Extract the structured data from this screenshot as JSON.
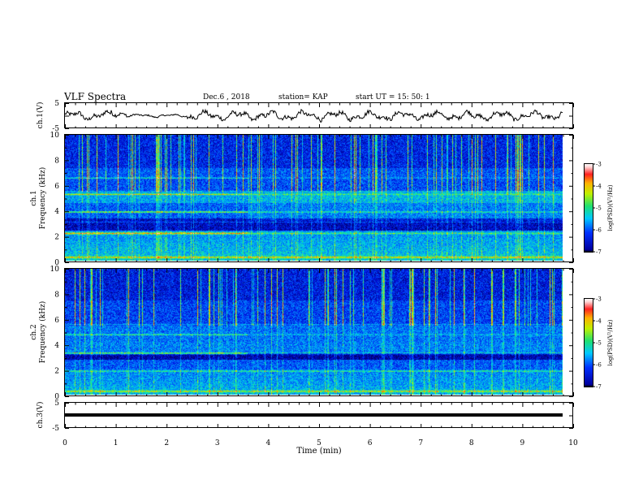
{
  "header": {
    "title": "VLF Spectra",
    "date": "Dec.6 , 2018",
    "station": "station= KAP",
    "start": "start UT = 15: 50: 1"
  },
  "chart_data": [
    {
      "type": "line",
      "panel": "ch1-waveform",
      "ylabel": "ch.1(V)",
      "ylim": [
        -5,
        5
      ],
      "yticks": [
        -5,
        0,
        5
      ],
      "ytick_labels": [
        "-5",
        "",
        "5"
      ],
      "xlim": [
        0,
        10
      ],
      "x_extent_min": [
        0,
        9.8
      ],
      "shape": "noise-like oscillation between about -2 V and +2 V"
    },
    {
      "type": "heatmap",
      "panel": "ch1-spectrogram",
      "ylabel": "ch.1 Frequency (kHz)",
      "ylim": [
        0,
        10
      ],
      "yticks": [
        0,
        2,
        4,
        6,
        8,
        10
      ],
      "xlim": [
        0,
        10
      ],
      "x_extent_min": [
        0,
        9.8
      ],
      "break_min": 3.6,
      "colorbar": {
        "label": "log(PSD)(V²/Hz)",
        "range": [
          -7,
          -3
        ],
        "ticks": [
          -7,
          -6,
          -5,
          -4,
          -3
        ]
      }
    },
    {
      "type": "heatmap",
      "panel": "ch2-spectrogram",
      "ylabel": "ch.2 Frequency (kHz)",
      "ylim": [
        0,
        10
      ],
      "yticks": [
        0,
        2,
        4,
        6,
        8,
        10
      ],
      "xlim": [
        0,
        10
      ],
      "x_extent_min": [
        0,
        9.8
      ],
      "break_min": 3.6,
      "colorbar": {
        "label": "log(PSD)(V²/Hz)",
        "range": [
          -7,
          -3
        ],
        "ticks": [
          -7,
          -6,
          -5,
          -4,
          -3
        ]
      }
    },
    {
      "type": "line",
      "panel": "ch3-waveform",
      "ylabel": "ch.3(V)",
      "ylim": [
        -5,
        5
      ],
      "yticks": [
        -5,
        0,
        5
      ],
      "ytick_labels": [
        "-5",
        "",
        "5"
      ],
      "xlim": [
        0,
        10
      ],
      "x_extent_min": [
        0,
        9.8
      ],
      "constant_value": 0
    }
  ],
  "xaxis": {
    "label": "Time (min)",
    "ticks": [
      "0",
      "1",
      "2",
      "3",
      "4",
      "5",
      "6",
      "7",
      "8",
      "9",
      "10"
    ]
  },
  "labels": {
    "ch1_wave": "ch.1(V)",
    "ch1_spec": "ch.1",
    "ch2_spec": "ch.2",
    "ch3_wave": "ch.3(V)",
    "freq": "Frequency (kHz)",
    "cbar": "log(PSD)(V²/Hz)"
  },
  "ticklabels": {
    "wave_top": "5",
    "wave_bottom": "-5",
    "freq": [
      "0",
      "2",
      "4",
      "6",
      "8",
      "10"
    ],
    "cbar": [
      "-7",
      "-6",
      "-5",
      "-4",
      "-3"
    ]
  }
}
